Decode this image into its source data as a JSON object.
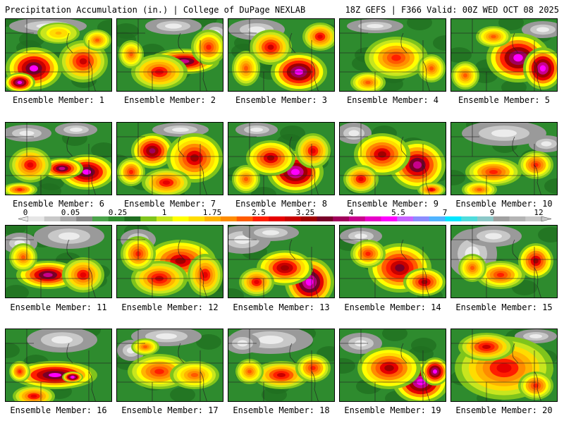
{
  "header": {
    "left": "Precipitation Accumulation (in.) | College of DuPage NEXLAB",
    "right": "18Z GEFS | F366 Valid: 00Z WED OCT 08 2025"
  },
  "legend": {
    "ticks": [
      "0",
      "0.05",
      "0.25",
      "1",
      "1.75",
      "2.5",
      "3.25",
      "4",
      "5.5",
      "7",
      "9",
      "12"
    ],
    "colors": [
      "#e6e6e6",
      "#c8c8c8",
      "#a8a8a8",
      "#888888",
      "#4ba44b",
      "#2e8b2e",
      "#1f6e1f",
      "#7fc41c",
      "#c8e61e",
      "#ffff00",
      "#ffdc00",
      "#ffb400",
      "#ff8c00",
      "#ff5a00",
      "#ff1e00",
      "#e60000",
      "#c80000",
      "#a00000",
      "#780028",
      "#a0005a",
      "#c8008c",
      "#e600c8",
      "#ff00ff",
      "#c864ff",
      "#8c8cff",
      "#50b4ff",
      "#00e6ff",
      "#50dcdc",
      "#8cc8c8",
      "#a0a0a0",
      "#b4b4b4",
      "#c8c8c8"
    ]
  },
  "members": [
    {
      "label": "Ensemble Member: 1"
    },
    {
      "label": "Ensemble Member: 2"
    },
    {
      "label": "Ensemble Member: 3"
    },
    {
      "label": "Ensemble Member: 4"
    },
    {
      "label": "Ensemble Member: 5"
    },
    {
      "label": "Ensemble Member: 6"
    },
    {
      "label": "Ensemble Member: 7"
    },
    {
      "label": "Ensemble Member: 8"
    },
    {
      "label": "Ensemble Member: 9"
    },
    {
      "label": "Ensemble Member: 10"
    },
    {
      "label": "Ensemble Member: 11"
    },
    {
      "label": "Ensemble Member: 12"
    },
    {
      "label": "Ensemble Member: 13"
    },
    {
      "label": "Ensemble Member: 14"
    },
    {
      "label": "Ensemble Member: 15"
    },
    {
      "label": "Ensemble Member: 16"
    },
    {
      "label": "Ensemble Member: 17"
    },
    {
      "label": "Ensemble Member: 18"
    },
    {
      "label": "Ensemble Member: 19"
    },
    {
      "label": "Ensemble Member: 20"
    }
  ]
}
